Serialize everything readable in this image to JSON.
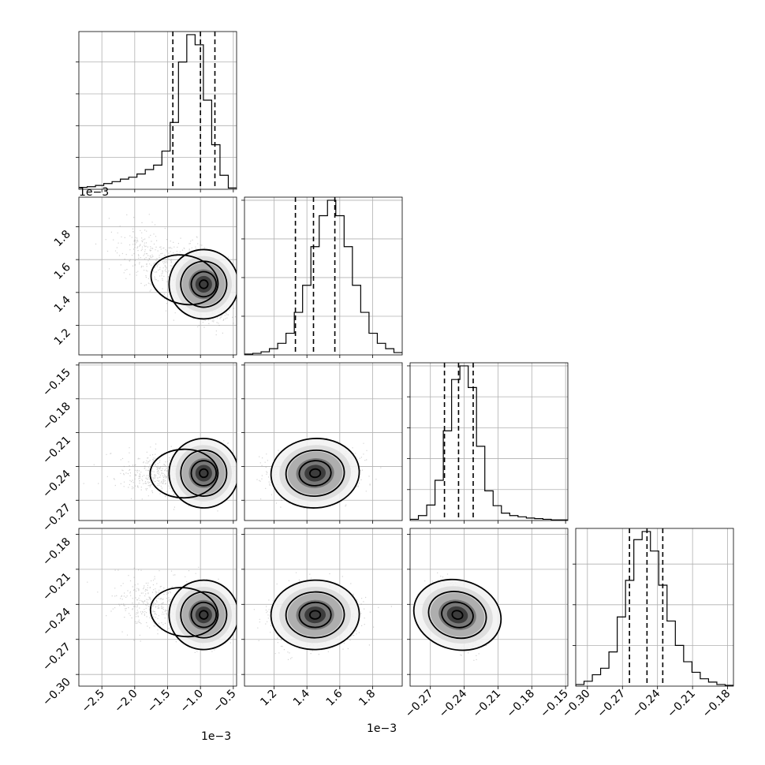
{
  "chart_data": {
    "type": "corner",
    "grid": true,
    "parameters": [
      {
        "offset_label": "1e−3",
        "range": [
          -2.85,
          -0.45
        ],
        "ticks": [
          -2.5,
          -2.0,
          -1.5,
          -1.0,
          -0.5
        ],
        "tick_labels": [
          "−2.5",
          "−2.0",
          "−1.5",
          "−1.0",
          "−0.5"
        ],
        "quantiles": [
          -1.42,
          -1.0,
          -0.78
        ],
        "hist_counts": [
          3,
          4,
          6,
          9,
          12,
          16,
          19,
          24,
          31,
          38,
          60,
          105,
          200,
          243,
          227,
          140,
          70,
          22,
          2
        ],
        "center": -0.95,
        "spread": 0.2,
        "tail_center": -1.7,
        "tail_spread": 0.3
      },
      {
        "offset_label": "1e−3",
        "range": [
          1.02,
          1.98
        ],
        "ticks": [
          1.2,
          1.4,
          1.6,
          1.8
        ],
        "tick_labels": [
          "1.2",
          "1.4",
          "1.6",
          "1.8"
        ],
        "quantiles": [
          1.33,
          1.44,
          1.57
        ],
        "hist_counts": [
          1,
          2,
          4,
          8,
          15,
          28,
          55,
          90,
          140,
          180,
          200,
          180,
          140,
          90,
          55,
          28,
          15,
          8,
          3
        ],
        "center": 1.45,
        "spread": 0.12
      },
      {
        "range": [
          -0.288,
          -0.148
        ],
        "ticks": [
          -0.27,
          -0.24,
          -0.21,
          -0.18,
          -0.15
        ],
        "tick_labels": [
          "−0.27",
          "−0.24",
          "−0.21",
          "−0.18",
          "−0.15"
        ],
        "quantiles": [
          -0.2575,
          -0.245,
          -0.232
        ],
        "hist_counts": [
          2,
          8,
          25,
          65,
          145,
          228,
          250,
          215,
          120,
          48,
          24,
          12,
          8,
          6,
          4,
          3,
          2,
          1,
          1
        ],
        "center": -0.246,
        "spread": 0.0095
      },
      {
        "range": [
          -0.31,
          -0.175
        ],
        "ticks": [
          -0.3,
          -0.27,
          -0.24,
          -0.21,
          -0.18
        ],
        "tick_labels": [
          "−0.30",
          "−0.27",
          "−0.24",
          "−0.21",
          "−0.18"
        ],
        "quantiles": [
          -0.264,
          -0.249,
          -0.2355
        ],
        "hist_counts": [
          2,
          6,
          14,
          22,
          42,
          85,
          130,
          180,
          190,
          166,
          124,
          80,
          50,
          30,
          17,
          9,
          5,
          2,
          1
        ],
        "center": -0.249,
        "spread": 0.0115
      }
    ],
    "pairs": [
      {
        "row": 1,
        "col": 0,
        "correlation": -0.62
      },
      {
        "row": 2,
        "col": 0,
        "correlation": 0.05
      },
      {
        "row": 2,
        "col": 1,
        "correlation": 0.12
      },
      {
        "row": 3,
        "col": 0,
        "correlation": -0.38
      },
      {
        "row": 3,
        "col": 1,
        "correlation": 0.05
      },
      {
        "row": 3,
        "col": 2,
        "correlation": -0.42
      }
    ],
    "contour_levels": 3,
    "scatter_color": "#808080",
    "line_color": "#000000"
  }
}
